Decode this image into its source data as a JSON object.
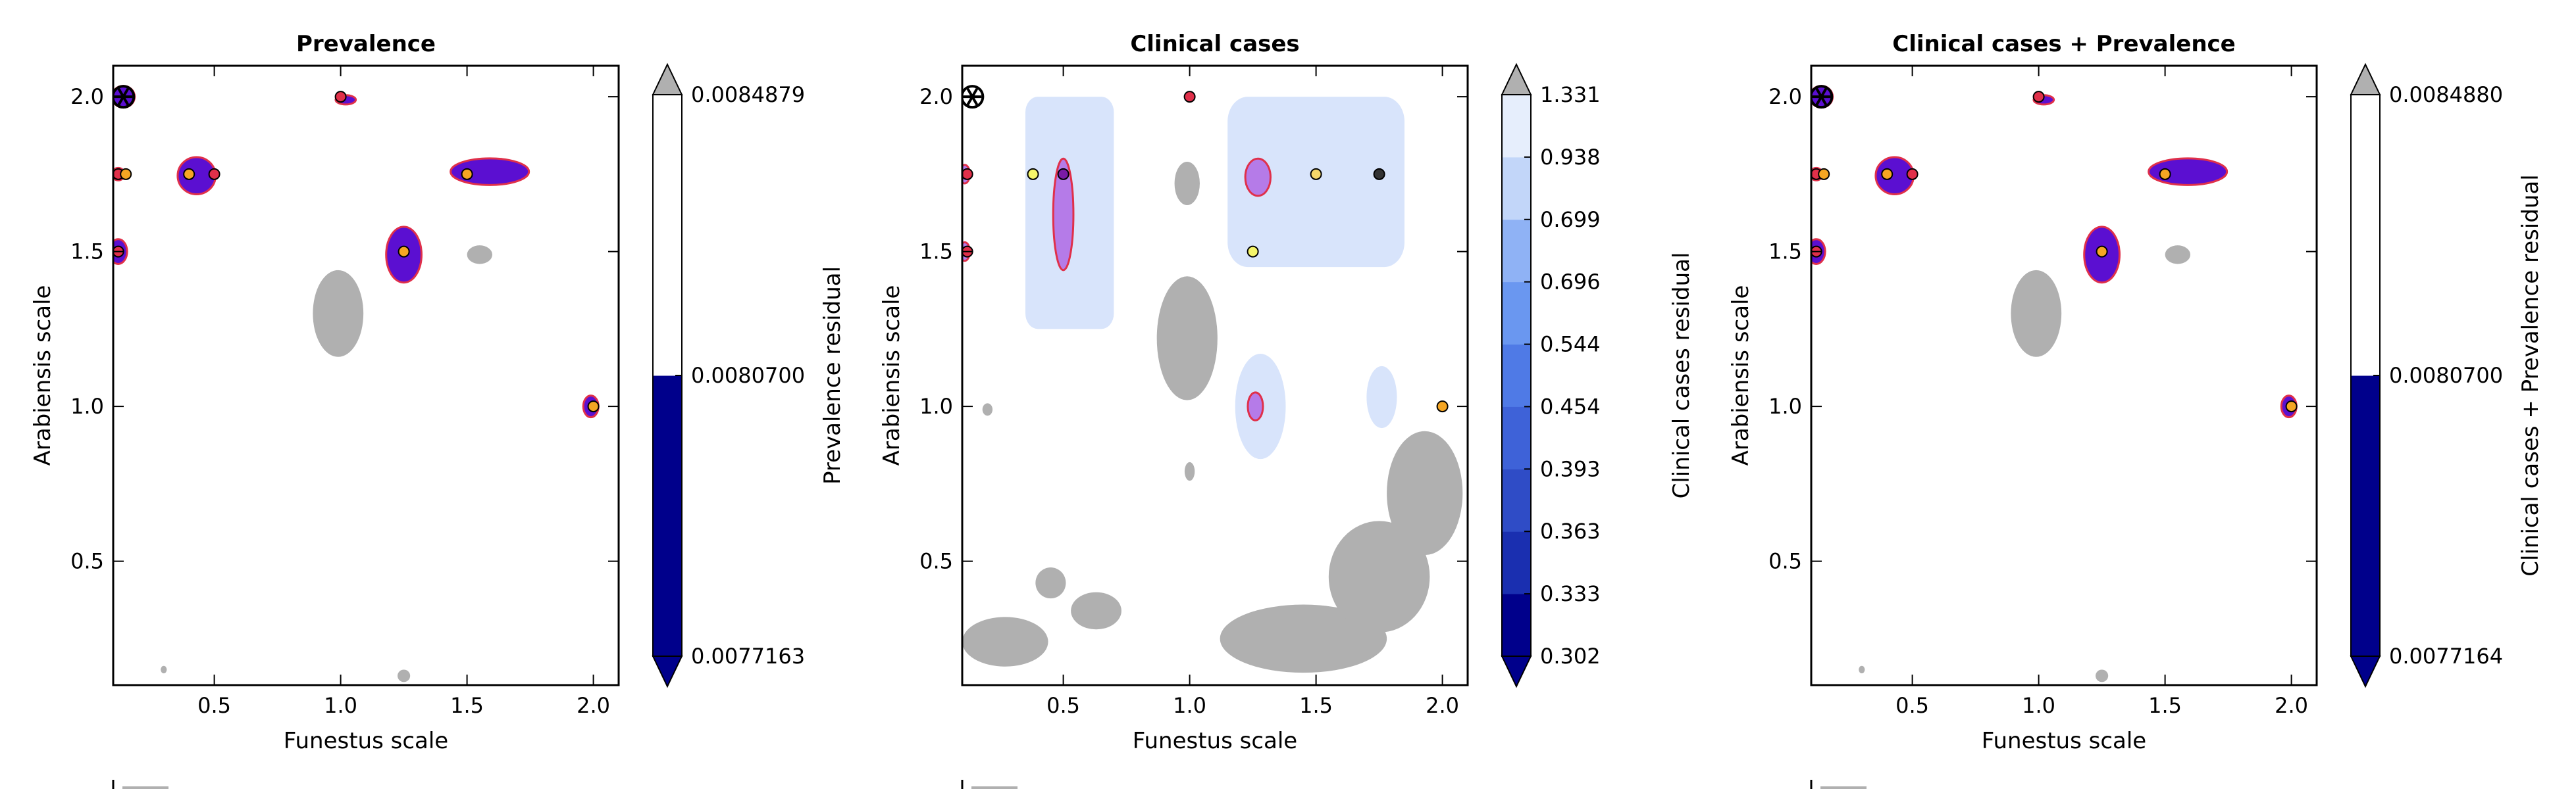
{
  "chart_data": [
    {
      "type": "contour",
      "title": "Prevalence",
      "xlabel": "Funestus scale",
      "ylabel": "Arabiensis scale",
      "xlim": [
        0.1,
        2.1
      ],
      "ylim": [
        0.1,
        2.1
      ],
      "xticks": [
        {
          "v": 0.5,
          "label": "0.5"
        },
        {
          "v": 1.0,
          "label": "1.0"
        },
        {
          "v": 1.5,
          "label": "1.5"
        },
        {
          "v": 2.0,
          "label": "2.0"
        }
      ],
      "yticks": [
        {
          "v": 0.5,
          "label": "0.5"
        },
        {
          "v": 1.0,
          "label": "1.0"
        },
        {
          "v": 1.5,
          "label": "1.5"
        },
        {
          "v": 2.0,
          "label": "2.0"
        }
      ],
      "colorbar": {
        "label": "Prevalence residual",
        "colors": [
          "#00008b",
          "#ffffff"
        ],
        "ticks": [
          "0.0077163",
          "0.0080700",
          "0.0084879"
        ]
      },
      "regions": [
        {
          "shape": "ellipse",
          "x": 0.43,
          "y": 1.745,
          "rx": 0.075,
          "ry": 0.06,
          "fill": "#5b0fd1",
          "stroke": "#e0304a"
        },
        {
          "shape": "ellipse",
          "x": 1.59,
          "y": 1.758,
          "rx": 0.155,
          "ry": 0.043,
          "fill": "#5b0fd1",
          "stroke": "#e0304a"
        },
        {
          "shape": "ellipse",
          "x": 1.25,
          "y": 1.49,
          "rx": 0.07,
          "ry": 0.09,
          "fill": "#5b0fd1",
          "stroke": "#e0304a"
        },
        {
          "shape": "ellipse",
          "x": 0.14,
          "y": 2.0,
          "rx": 0.045,
          "ry": 0.035,
          "fill": "#5b0fd1",
          "stroke": "#e0304a"
        },
        {
          "shape": "ellipse",
          "x": 0.12,
          "y": 1.5,
          "rx": 0.035,
          "ry": 0.04,
          "fill": "#5b0fd1",
          "stroke": "#e0304a"
        },
        {
          "shape": "ellipse",
          "x": 1.99,
          "y": 1.0,
          "rx": 0.03,
          "ry": 0.035,
          "fill": "#5b0fd1",
          "stroke": "#e0304a"
        },
        {
          "shape": "ellipse",
          "x": 1.02,
          "y": 1.99,
          "rx": 0.04,
          "ry": 0.015,
          "fill": "#5b0fd1",
          "stroke": "#e0304a"
        },
        {
          "shape": "ellipse",
          "x": 0.12,
          "y": 1.75,
          "rx": 0.025,
          "ry": 0.02,
          "fill": "#5b0fd1",
          "stroke": "#e0304a"
        },
        {
          "shape": "ellipse",
          "x": 0.99,
          "y": 1.3,
          "rx": 0.1,
          "ry": 0.14,
          "fill": "#b0b0b0",
          "stroke": "none"
        },
        {
          "shape": "ellipse",
          "x": 1.55,
          "y": 1.49,
          "rx": 0.05,
          "ry": 0.03,
          "fill": "#b0b0b0",
          "stroke": "none"
        },
        {
          "shape": "ellipse",
          "x": 1.25,
          "y": 0.13,
          "rx": 0.025,
          "ry": 0.02,
          "fill": "#b0b0b0",
          "stroke": "none"
        },
        {
          "shape": "ellipse",
          "x": 0.3,
          "y": 0.15,
          "rx": 0.012,
          "ry": 0.012,
          "fill": "#b0b0b0",
          "stroke": "none"
        }
      ],
      "points": [
        {
          "x": 0.4,
          "y": 1.75,
          "color": "#f5a623"
        },
        {
          "x": 0.5,
          "y": 1.75,
          "color": "#e0304a"
        },
        {
          "x": 0.12,
          "y": 1.75,
          "color": "#e0304a"
        },
        {
          "x": 0.15,
          "y": 1.75,
          "color": "#f5a623"
        },
        {
          "x": 0.12,
          "y": 1.5,
          "color": "#e0304a"
        },
        {
          "x": 1.5,
          "y": 1.75,
          "color": "#f5a623"
        },
        {
          "x": 1.25,
          "y": 1.5,
          "color": "#f5a623"
        },
        {
          "x": 1.0,
          "y": 2.0,
          "color": "#e0304a"
        },
        {
          "x": 2.0,
          "y": 1.0,
          "color": "#f5a623"
        }
      ],
      "optimum_marker": {
        "x": 0.14,
        "y": 2.0
      }
    },
    {
      "type": "contour",
      "title": "Clinical cases",
      "xlabel": "Funestus scale",
      "ylabel": "Arabiensis scale",
      "xlim": [
        0.1,
        2.1
      ],
      "ylim": [
        0.1,
        2.1
      ],
      "xticks": [
        {
          "v": 0.5,
          "label": "0.5"
        },
        {
          "v": 1.0,
          "label": "1.0"
        },
        {
          "v": 1.5,
          "label": "1.5"
        },
        {
          "v": 2.0,
          "label": "2.0"
        }
      ],
      "yticks": [
        {
          "v": 0.5,
          "label": "0.5"
        },
        {
          "v": 1.0,
          "label": "1.0"
        },
        {
          "v": 1.5,
          "label": "1.5"
        },
        {
          "v": 2.0,
          "label": "2.0"
        }
      ],
      "colorbar": {
        "label": "Clinical cases residual",
        "colors": [
          "#00008b",
          "#1a2fb0",
          "#2f4cc6",
          "#3e62d8",
          "#4f7ae6",
          "#6a97f0",
          "#8fb2f5",
          "#c2d6f9",
          "#e6eefc"
        ],
        "ticks": [
          "0.302",
          "0.333",
          "0.363",
          "0.393",
          "0.454",
          "0.544",
          "0.696",
          "0.699",
          "0.938",
          "1.331"
        ]
      },
      "regions": [
        {
          "shape": "rect",
          "x0": 0.35,
          "x1": 0.7,
          "y0": 1.25,
          "y1": 2.0,
          "r": 0.05,
          "fill": "#d8e4fb",
          "stroke": "none"
        },
        {
          "shape": "rect",
          "x0": 1.15,
          "x1": 1.85,
          "y0": 1.45,
          "y1": 2.0,
          "r": 0.08,
          "fill": "#d8e4fb",
          "stroke": "none"
        },
        {
          "shape": "ellipse",
          "x": 1.28,
          "y": 1.0,
          "rx": 0.1,
          "ry": 0.17,
          "fill": "#d8e4fb",
          "stroke": "none"
        },
        {
          "shape": "ellipse",
          "x": 1.76,
          "y": 1.03,
          "rx": 0.06,
          "ry": 0.1,
          "fill": "#d8e4fb",
          "stroke": "none"
        },
        {
          "shape": "ellipse",
          "x": 0.5,
          "y": 1.62,
          "rx": 0.04,
          "ry": 0.18,
          "fill": "#b57be8",
          "stroke": "#e0304a"
        },
        {
          "shape": "ellipse",
          "x": 1.27,
          "y": 1.74,
          "rx": 0.05,
          "ry": 0.06,
          "fill": "#b57be8",
          "stroke": "#e0304a"
        },
        {
          "shape": "ellipse",
          "x": 1.26,
          "y": 1.0,
          "rx": 0.03,
          "ry": 0.045,
          "fill": "#b57be8",
          "stroke": "#e0304a"
        },
        {
          "shape": "ellipse",
          "x": 0.11,
          "y": 1.75,
          "rx": 0.02,
          "ry": 0.03,
          "fill": "#b57be8",
          "stroke": "#e0304a"
        },
        {
          "shape": "ellipse",
          "x": 0.11,
          "y": 1.5,
          "rx": 0.02,
          "ry": 0.03,
          "fill": "#b57be8",
          "stroke": "#e0304a"
        },
        {
          "shape": "ellipse",
          "x": 0.99,
          "y": 1.22,
          "rx": 0.12,
          "ry": 0.2,
          "fill": "#b0b0b0",
          "stroke": "none"
        },
        {
          "shape": "ellipse",
          "x": 0.99,
          "y": 1.72,
          "rx": 0.05,
          "ry": 0.07,
          "fill": "#b0b0b0",
          "stroke": "none"
        },
        {
          "shape": "ellipse",
          "x": 1.0,
          "y": 0.79,
          "rx": 0.02,
          "ry": 0.03,
          "fill": "#b0b0b0",
          "stroke": "none"
        },
        {
          "shape": "ellipse",
          "x": 0.2,
          "y": 0.99,
          "rx": 0.02,
          "ry": 0.02,
          "fill": "#b0b0b0",
          "stroke": "none"
        },
        {
          "shape": "ellipse",
          "x": 0.63,
          "y": 0.34,
          "rx": 0.1,
          "ry": 0.06,
          "fill": "#b0b0b0",
          "stroke": "none"
        },
        {
          "shape": "ellipse",
          "x": 0.27,
          "y": 0.24,
          "rx": 0.17,
          "ry": 0.08,
          "fill": "#b0b0b0",
          "stroke": "none"
        },
        {
          "shape": "ellipse",
          "x": 0.45,
          "y": 0.43,
          "rx": 0.06,
          "ry": 0.05,
          "fill": "#b0b0b0",
          "stroke": "none"
        },
        {
          "shape": "ellipse",
          "x": 1.45,
          "y": 0.25,
          "rx": 0.33,
          "ry": 0.11,
          "fill": "#b0b0b0",
          "stroke": "none"
        },
        {
          "shape": "ellipse",
          "x": 1.75,
          "y": 0.45,
          "rx": 0.2,
          "ry": 0.18,
          "fill": "#b0b0b0",
          "stroke": "none"
        },
        {
          "shape": "ellipse",
          "x": 1.93,
          "y": 0.72,
          "rx": 0.15,
          "ry": 0.2,
          "fill": "#b0b0b0",
          "stroke": "none"
        }
      ],
      "points": [
        {
          "x": 0.38,
          "y": 1.75,
          "color": "#f5f56a"
        },
        {
          "x": 0.5,
          "y": 1.75,
          "color": "#7a1ba6"
        },
        {
          "x": 0.12,
          "y": 1.75,
          "color": "#e0304a"
        },
        {
          "x": 0.12,
          "y": 1.5,
          "color": "#e0304a"
        },
        {
          "x": 1.5,
          "y": 1.75,
          "color": "#f5d76a"
        },
        {
          "x": 1.75,
          "y": 1.75,
          "color": "#333333"
        },
        {
          "x": 1.25,
          "y": 1.5,
          "color": "#f5f56a"
        },
        {
          "x": 1.0,
          "y": 2.0,
          "color": "#e0304a"
        },
        {
          "x": 2.0,
          "y": 1.0,
          "color": "#f5a623"
        }
      ],
      "optimum_marker": {
        "x": 0.14,
        "y": 2.0
      }
    },
    {
      "type": "contour",
      "title": "Clinical cases + Prevalence",
      "xlabel": "Funestus scale",
      "ylabel": "Arabiensis scale",
      "xlim": [
        0.1,
        2.1
      ],
      "ylim": [
        0.1,
        2.1
      ],
      "xticks": [
        {
          "v": 0.5,
          "label": "0.5"
        },
        {
          "v": 1.0,
          "label": "1.0"
        },
        {
          "v": 1.5,
          "label": "1.5"
        },
        {
          "v": 2.0,
          "label": "2.0"
        }
      ],
      "yticks": [
        {
          "v": 0.5,
          "label": "0.5"
        },
        {
          "v": 1.0,
          "label": "1.0"
        },
        {
          "v": 1.5,
          "label": "1.5"
        },
        {
          "v": 2.0,
          "label": "2.0"
        }
      ],
      "colorbar": {
        "label": "Clinical cases + Prevalence residual",
        "colors": [
          "#00008b",
          "#ffffff"
        ],
        "ticks": [
          "0.0077164",
          "0.0080700",
          "0.0084880"
        ]
      },
      "regions": [
        {
          "shape": "ellipse",
          "x": 0.43,
          "y": 1.745,
          "rx": 0.075,
          "ry": 0.06,
          "fill": "#5b0fd1",
          "stroke": "#e0304a"
        },
        {
          "shape": "ellipse",
          "x": 1.59,
          "y": 1.758,
          "rx": 0.155,
          "ry": 0.043,
          "fill": "#5b0fd1",
          "stroke": "#e0304a"
        },
        {
          "shape": "ellipse",
          "x": 1.25,
          "y": 1.49,
          "rx": 0.07,
          "ry": 0.09,
          "fill": "#5b0fd1",
          "stroke": "#e0304a"
        },
        {
          "shape": "ellipse",
          "x": 0.14,
          "y": 2.0,
          "rx": 0.045,
          "ry": 0.035,
          "fill": "#5b0fd1",
          "stroke": "#e0304a"
        },
        {
          "shape": "ellipse",
          "x": 0.12,
          "y": 1.5,
          "rx": 0.035,
          "ry": 0.04,
          "fill": "#5b0fd1",
          "stroke": "#e0304a"
        },
        {
          "shape": "ellipse",
          "x": 1.99,
          "y": 1.0,
          "rx": 0.03,
          "ry": 0.035,
          "fill": "#5b0fd1",
          "stroke": "#e0304a"
        },
        {
          "shape": "ellipse",
          "x": 1.02,
          "y": 1.99,
          "rx": 0.04,
          "ry": 0.015,
          "fill": "#5b0fd1",
          "stroke": "#e0304a"
        },
        {
          "shape": "ellipse",
          "x": 0.12,
          "y": 1.75,
          "rx": 0.025,
          "ry": 0.02,
          "fill": "#5b0fd1",
          "stroke": "#e0304a"
        },
        {
          "shape": "ellipse",
          "x": 0.99,
          "y": 1.3,
          "rx": 0.1,
          "ry": 0.14,
          "fill": "#b0b0b0",
          "stroke": "none"
        },
        {
          "shape": "ellipse",
          "x": 1.55,
          "y": 1.49,
          "rx": 0.05,
          "ry": 0.03,
          "fill": "#b0b0b0",
          "stroke": "none"
        },
        {
          "shape": "ellipse",
          "x": 1.25,
          "y": 0.13,
          "rx": 0.025,
          "ry": 0.02,
          "fill": "#b0b0b0",
          "stroke": "none"
        },
        {
          "shape": "ellipse",
          "x": 0.3,
          "y": 0.15,
          "rx": 0.012,
          "ry": 0.012,
          "fill": "#b0b0b0",
          "stroke": "none"
        }
      ],
      "points": [
        {
          "x": 0.4,
          "y": 1.75,
          "color": "#f5a623"
        },
        {
          "x": 0.5,
          "y": 1.75,
          "color": "#e0304a"
        },
        {
          "x": 0.12,
          "y": 1.75,
          "color": "#e0304a"
        },
        {
          "x": 0.15,
          "y": 1.75,
          "color": "#f5a623"
        },
        {
          "x": 0.12,
          "y": 1.5,
          "color": "#e0304a"
        },
        {
          "x": 1.5,
          "y": 1.75,
          "color": "#f5a623"
        },
        {
          "x": 1.25,
          "y": 1.5,
          "color": "#f5a623"
        },
        {
          "x": 1.0,
          "y": 2.0,
          "color": "#e0304a"
        },
        {
          "x": 2.0,
          "y": 1.0,
          "color": "#f5a623"
        }
      ],
      "optimum_marker": {
        "x": 0.14,
        "y": 2.0
      }
    }
  ]
}
